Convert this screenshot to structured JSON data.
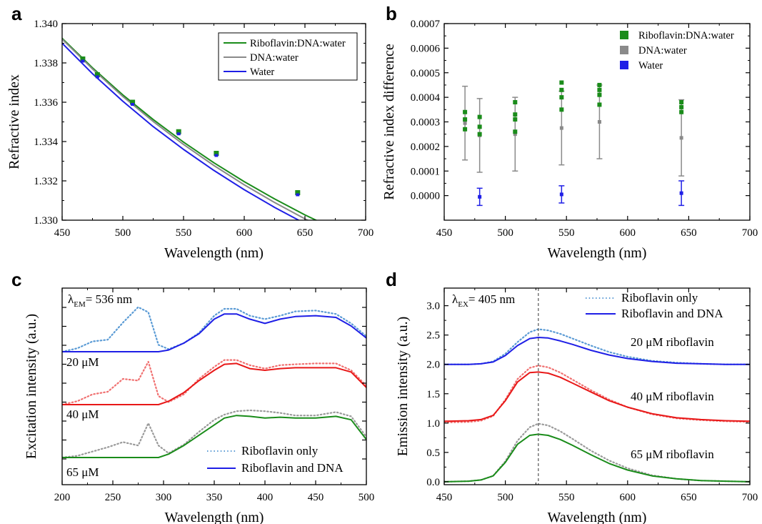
{
  "chart_data": [
    {
      "panel": "a",
      "type": "line",
      "xlabel": "Wavelength (nm)",
      "ylabel": "Refractive index",
      "xlim": [
        450,
        700
      ],
      "ylim": [
        1.33,
        1.34
      ],
      "xticks": [
        "450",
        "500",
        "550",
        "600",
        "650",
        "700"
      ],
      "yticks": [
        "1.330",
        "1.332",
        "1.334",
        "1.336",
        "1.338",
        "1.340"
      ],
      "legend": "top-right",
      "series": [
        {
          "name": "Riboflavin:DNA:water",
          "color": "#1a8c1a",
          "x": [
            450,
            475,
            500,
            525,
            550,
            575,
            600,
            625,
            650,
            675,
            700
          ],
          "y": [
            1.33925,
            1.33775,
            1.33637,
            1.33512,
            1.33397,
            1.33292,
            1.33196,
            1.33108,
            1.33027,
            1.32953,
            1.32885
          ]
        },
        {
          "name": "DNA:water",
          "color": "#8a8a8a",
          "x": [
            450,
            475,
            500,
            525,
            550,
            575,
            600,
            625,
            650,
            675,
            700
          ],
          "y": [
            1.33921,
            1.33769,
            1.33629,
            1.33502,
            1.33385,
            1.33278,
            1.3318,
            1.3309,
            1.33007,
            1.32931,
            1.32861
          ]
        },
        {
          "name": "Water",
          "color": "#1f1fe6",
          "x": [
            450,
            475,
            500,
            525,
            550,
            575,
            600,
            625,
            650,
            675,
            700
          ],
          "y": [
            1.339,
            1.33745,
            1.33605,
            1.33476,
            1.3336,
            1.33253,
            1.33155,
            1.33065,
            1.32983,
            1.32908,
            1.32838
          ]
        }
      ],
      "markers": {
        "x": [
          467,
          479,
          508,
          546,
          577,
          644
        ],
        "y": [
          1.3382,
          1.3374,
          1.336,
          1.3345,
          1.3334,
          1.3314
        ]
      }
    },
    {
      "panel": "b",
      "type": "scatter",
      "xlabel": "Wavelength (nm)",
      "ylabel": "Refractive index difference",
      "xlim": [
        450,
        700
      ],
      "ylim": [
        -0.0001,
        0.0007
      ],
      "xticks": [
        "450",
        "500",
        "550",
        "600",
        "650",
        "700"
      ],
      "yticks": [
        "0.0000",
        "0.0001",
        "0.0002",
        "0.0003",
        "0.0004",
        "0.0005",
        "0.0006",
        "0.0007"
      ],
      "legend": "top-right",
      "series": [
        {
          "name": "Riboflavin:DNA:water",
          "color": "#1a8c1a",
          "points": [
            [
              467,
              0.00027
            ],
            [
              467,
              0.00031
            ],
            [
              467,
              0.00034
            ],
            [
              479,
              0.00025
            ],
            [
              479,
              0.00028
            ],
            [
              479,
              0.00032
            ],
            [
              508,
              0.00026
            ],
            [
              508,
              0.00031
            ],
            [
              508,
              0.00033
            ],
            [
              508,
              0.00038
            ],
            [
              546,
              0.00035
            ],
            [
              546,
              0.0004
            ],
            [
              546,
              0.00043
            ],
            [
              546,
              0.00046
            ],
            [
              577,
              0.00037
            ],
            [
              577,
              0.00041
            ],
            [
              577,
              0.00043
            ],
            [
              577,
              0.00045
            ],
            [
              644,
              0.00034
            ],
            [
              644,
              0.00036
            ],
            [
              644,
              0.00038
            ]
          ]
        },
        {
          "name": "DNA:water",
          "color": "#8a8a8a",
          "points": [
            [
              467,
              0.000295
            ],
            [
              479,
              0.000245
            ],
            [
              508,
              0.00025
            ],
            [
              546,
              0.000275
            ],
            [
              577,
              0.0003
            ],
            [
              644,
              0.000235
            ]
          ],
          "err": [
            0.00015,
            0.00015,
            0.00015,
            0.00015,
            0.00015,
            0.000155
          ]
        },
        {
          "name": "Water",
          "color": "#1f1fe6",
          "points": [
            [
              479,
              -5e-06
            ],
            [
              546,
              5e-06
            ],
            [
              644,
              1e-05
            ]
          ],
          "err": [
            3.5e-05,
            3.5e-05,
            5e-05
          ]
        }
      ]
    },
    {
      "panel": "c",
      "type": "line",
      "xlabel": "Wavelength (nm)",
      "ylabel": "Excitation intensity (a.u.)",
      "xlim": [
        200,
        500
      ],
      "xticks": [
        "200",
        "250",
        "300",
        "350",
        "400",
        "450",
        "500"
      ],
      "legend": "bottom-right",
      "annotation": "= 536 nm",
      "annotation_symbol": "λ",
      "annotation_subscript": "EM",
      "curve_labels": [
        "20 μM",
        "40 μM",
        "65 μM"
      ],
      "legend_entries": [
        {
          "name": "Riboflavin only",
          "style": "dotted"
        },
        {
          "name": "Riboflavin and DNA",
          "style": "solid"
        }
      ],
      "x": [
        200,
        215,
        230,
        245,
        260,
        275,
        285,
        295,
        305,
        320,
        335,
        350,
        360,
        372,
        385,
        400,
        415,
        430,
        450,
        470,
        485,
        500
      ],
      "series": [
        {
          "group": "20 μM",
          "style": "dotted",
          "color": "#5b9bd5",
          "y": [
            0.0,
            0.04,
            0.12,
            0.14,
            0.34,
            0.52,
            0.46,
            0.08,
            0.03,
            0.1,
            0.22,
            0.42,
            0.5,
            0.5,
            0.42,
            0.38,
            0.42,
            0.47,
            0.48,
            0.44,
            0.33,
            0.18
          ]
        },
        {
          "group": "20 μM",
          "style": "solid",
          "color": "#1f1fe6",
          "y": [
            0.0,
            0.0,
            0.0,
            0.0,
            0.0,
            0.0,
            0.0,
            0.0,
            0.02,
            0.1,
            0.21,
            0.38,
            0.44,
            0.44,
            0.38,
            0.33,
            0.38,
            0.41,
            0.42,
            0.4,
            0.3,
            0.16
          ]
        },
        {
          "group": "40 μM",
          "style": "dotted",
          "color": "#f07070",
          "y": [
            0.0,
            0.04,
            0.12,
            0.15,
            0.3,
            0.28,
            0.5,
            0.1,
            0.03,
            0.12,
            0.3,
            0.44,
            0.52,
            0.52,
            0.46,
            0.42,
            0.46,
            0.47,
            0.48,
            0.48,
            0.4,
            0.22
          ]
        },
        {
          "group": "40 μM",
          "style": "solid",
          "color": "#e81818",
          "y": [
            0.0,
            0.0,
            0.0,
            0.0,
            0.0,
            0.0,
            0.0,
            0.0,
            0.04,
            0.14,
            0.28,
            0.4,
            0.47,
            0.48,
            0.42,
            0.4,
            0.42,
            0.43,
            0.43,
            0.43,
            0.38,
            0.2
          ]
        },
        {
          "group": "65 μM",
          "style": "dotted",
          "color": "#9a9a9a",
          "y": [
            0.0,
            0.02,
            0.07,
            0.12,
            0.18,
            0.14,
            0.4,
            0.14,
            0.05,
            0.15,
            0.3,
            0.44,
            0.5,
            0.54,
            0.55,
            0.54,
            0.52,
            0.49,
            0.49,
            0.53,
            0.48,
            0.24
          ]
        },
        {
          "group": "65 μM",
          "style": "solid",
          "color": "#1a8c1a",
          "y": [
            0.0,
            0.0,
            0.0,
            0.0,
            0.0,
            0.0,
            0.0,
            0.0,
            0.04,
            0.14,
            0.26,
            0.38,
            0.46,
            0.49,
            0.48,
            0.46,
            0.47,
            0.46,
            0.46,
            0.48,
            0.44,
            0.21
          ]
        }
      ],
      "offsets": {
        "20 μM": 2.0,
        "40 μM": 1.0,
        "65 μM": 0.0
      }
    },
    {
      "panel": "d",
      "type": "line",
      "xlabel": "Wavelength (nm)",
      "ylabel": "Emission intensity (a.u.)",
      "xlim": [
        450,
        700
      ],
      "ylim": [
        -0.05,
        3.3
      ],
      "xticks": [
        "450",
        "500",
        "550",
        "600",
        "650",
        "700"
      ],
      "yticks": [
        "0.0",
        "0.5",
        "1.0",
        "1.5",
        "2.0",
        "2.5",
        "3.0"
      ],
      "legend": "top-right",
      "annotation": "= 405 nm",
      "annotation_symbol": "λ",
      "annotation_subscript": "EX",
      "vline_x": 527,
      "curve_labels": [
        "20 μM riboflavin",
        "40 μM riboflavin",
        "65 μM riboflavin"
      ],
      "legend_entries": [
        {
          "name": "Riboflavin only",
          "style": "dotted"
        },
        {
          "name": "Riboflavin and DNA",
          "style": "solid"
        }
      ],
      "x": [
        450,
        470,
        480,
        490,
        500,
        510,
        520,
        527,
        535,
        545,
        555,
        570,
        585,
        600,
        620,
        640,
        660,
        680,
        700
      ],
      "series": [
        {
          "group": "20 μM riboflavin",
          "style": "dotted",
          "color": "#5b9bd5",
          "y": [
            2.0,
            2.0,
            2.01,
            2.05,
            2.18,
            2.38,
            2.55,
            2.6,
            2.58,
            2.52,
            2.44,
            2.32,
            2.21,
            2.13,
            2.06,
            2.03,
            2.01,
            2.0,
            2.0
          ]
        },
        {
          "group": "20 μM riboflavin",
          "style": "solid",
          "color": "#1f1fe6",
          "y": [
            2.0,
            2.0,
            2.01,
            2.04,
            2.15,
            2.32,
            2.44,
            2.46,
            2.45,
            2.4,
            2.34,
            2.24,
            2.16,
            2.1,
            2.05,
            2.02,
            2.01,
            2.0,
            2.0
          ]
        },
        {
          "group": "40 μM riboflavin",
          "style": "dotted",
          "color": "#f07070",
          "y": [
            1.01,
            1.02,
            1.04,
            1.12,
            1.4,
            1.75,
            1.94,
            1.98,
            1.95,
            1.86,
            1.74,
            1.56,
            1.4,
            1.27,
            1.15,
            1.08,
            1.05,
            1.03,
            1.02
          ]
        },
        {
          "group": "40 μM riboflavin",
          "style": "solid",
          "color": "#e81818",
          "y": [
            1.03,
            1.04,
            1.06,
            1.13,
            1.38,
            1.7,
            1.86,
            1.87,
            1.85,
            1.78,
            1.68,
            1.53,
            1.38,
            1.27,
            1.16,
            1.09,
            1.06,
            1.04,
            1.03
          ]
        },
        {
          "group": "65 μM riboflavin",
          "style": "dotted",
          "color": "#9a9a9a",
          "y": [
            0.0,
            0.01,
            0.03,
            0.1,
            0.35,
            0.7,
            0.93,
            0.99,
            0.96,
            0.86,
            0.73,
            0.53,
            0.36,
            0.23,
            0.11,
            0.05,
            0.02,
            0.01,
            0.0
          ]
        },
        {
          "group": "65 μM riboflavin",
          "style": "solid",
          "color": "#1a8c1a",
          "y": [
            0.0,
            0.01,
            0.03,
            0.1,
            0.33,
            0.64,
            0.79,
            0.81,
            0.79,
            0.72,
            0.62,
            0.46,
            0.31,
            0.2,
            0.1,
            0.05,
            0.02,
            0.01,
            0.0
          ]
        }
      ]
    }
  ],
  "panel_letters": [
    "a",
    "b",
    "c",
    "d"
  ],
  "legend_a": [
    "Riboflavin:DNA:water",
    "DNA:water",
    "Water"
  ],
  "legend_b": [
    "Riboflavin:DNA:water",
    "DNA:water",
    "Water"
  ]
}
